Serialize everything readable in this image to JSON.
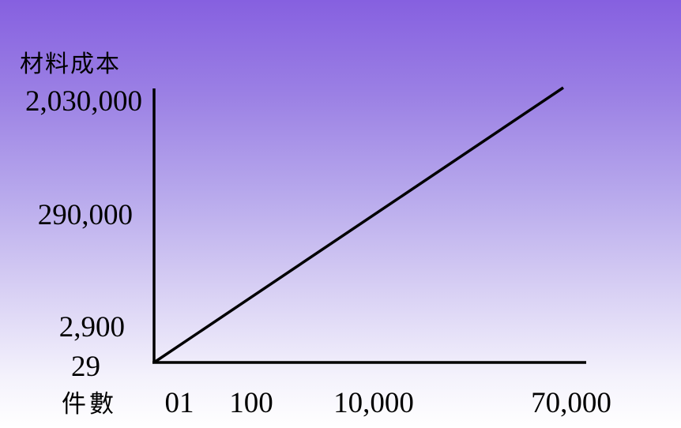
{
  "chart_data": {
    "type": "line",
    "ylabel": "材料成本",
    "xlabel": "件數",
    "y_ticks": [
      "2,030,000",
      "290,000",
      "2,900",
      "29"
    ],
    "x_ticks": [
      "01",
      "100",
      "10,000",
      "70,000"
    ],
    "y_scale": "log",
    "x_scale": "log",
    "grid": false,
    "series": [
      {
        "x": [
          1,
          70000
        ],
        "y": [
          29,
          2030000
        ]
      }
    ]
  },
  "colors": {
    "background_top": "#8660e0",
    "background_bottom": "#ffffff",
    "line": "#000000",
    "axis": "#000000",
    "text": "#000000"
  }
}
